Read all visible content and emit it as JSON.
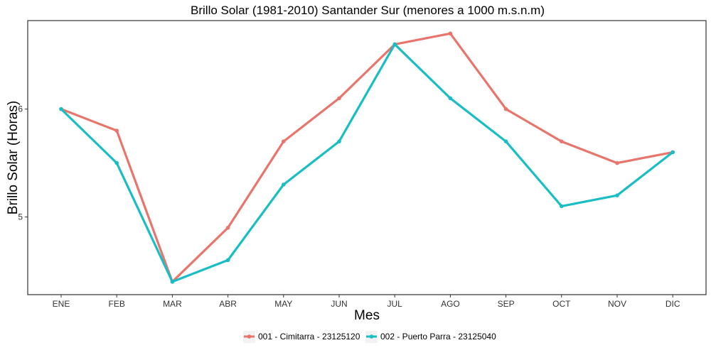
{
  "chart_data": {
    "type": "line",
    "title": "Brillo Solar (1981-2010) Santander Sur (menores a 1000 m.s.n.m)",
    "xlabel": "Mes",
    "ylabel": "Brillo Solar (Horas)",
    "categories": [
      "ENE",
      "FEB",
      "MAR",
      "ABR",
      "MAY",
      "JUN",
      "JUL",
      "AGO",
      "SEP",
      "OCT",
      "NOV",
      "DIC"
    ],
    "yticks": [
      "5",
      "6"
    ],
    "ylim": [
      4.28,
      6.82
    ],
    "grid": false,
    "legend_position": "bottom",
    "series": [
      {
        "name": "001 - Cimitarra - 23125120",
        "color": "#E8756C",
        "values": [
          6.0,
          5.8,
          4.4,
          4.9,
          5.7,
          6.1,
          6.6,
          6.7,
          6.0,
          5.7,
          5.5,
          5.6
        ]
      },
      {
        "name": "002 - Puerto Parra - 23125040",
        "color": "#19BDC4",
        "values": [
          6.0,
          5.5,
          4.4,
          4.6,
          5.3,
          5.7,
          6.6,
          6.1,
          5.7,
          5.1,
          5.2,
          5.6
        ]
      }
    ]
  }
}
